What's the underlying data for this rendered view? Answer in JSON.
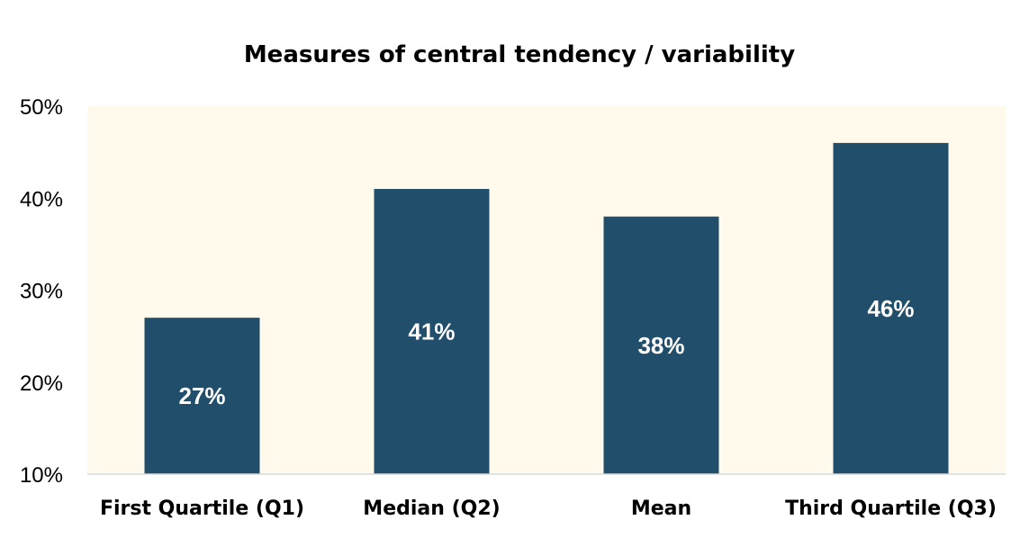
{
  "chart_data": {
    "type": "bar",
    "title": "Measures of central tendency / variability",
    "xlabel": "",
    "ylabel": "",
    "categories": [
      "First Quartile (Q1)",
      "Median (Q2)",
      "Mean",
      "Third Quartile (Q3)"
    ],
    "values": [
      27,
      41,
      38,
      46
    ],
    "data_labels": [
      "27%",
      "41%",
      "38%",
      "46%"
    ],
    "ylim": [
      10,
      50
    ],
    "yticks": [
      10,
      20,
      30,
      40,
      50
    ],
    "ytick_labels": [
      "10%",
      "20%",
      "30%",
      "40%",
      "50%"
    ],
    "grid": false,
    "legend": "none",
    "colors": {
      "bar": "#214e6b",
      "plot_background": "#fffaeb",
      "axis_line": "#d9d9d9",
      "data_label": "#ffffff"
    }
  }
}
